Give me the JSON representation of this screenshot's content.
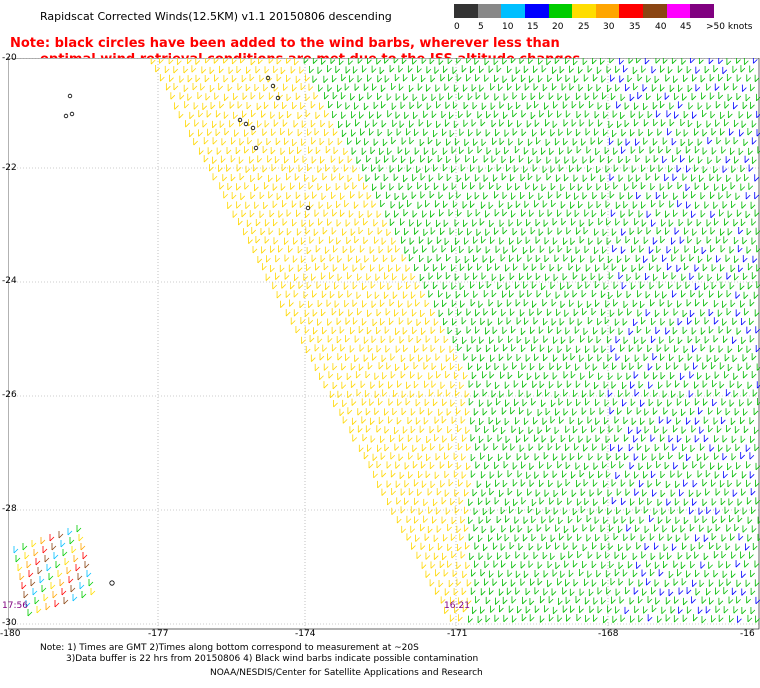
{
  "title": "Rapidscat Corrected Winds(12.5KM) v1.1 20150806 descending",
  "note_red": {
    "line1": "Note: black circles have been added to the wind barbs, wherever less than",
    "line2": "optimal wind retrieval conditions are met due to the ISS altitude changes."
  },
  "legend": {
    "ticks": [
      "0",
      "5",
      "10",
      "15",
      "20",
      "25",
      "30",
      "35",
      "40",
      "45",
      ">50 knots"
    ],
    "colors": [
      "#333333",
      "#888888",
      "#00bfff",
      "#0000ff",
      "#00cc00",
      "#ffdd00",
      "#ffa500",
      "#ff0000",
      "#8b4513",
      "#ff00ff",
      "#800080"
    ]
  },
  "axes": {
    "lat_labels": [
      "-20",
      "-22",
      "-24",
      "-26",
      "-28",
      "-30"
    ],
    "lon_labels": [
      "-180",
      "-177",
      "-174",
      "-171",
      "-168",
      "-16"
    ]
  },
  "time_labels": [
    "17:56",
    "16:21"
  ],
  "footer": {
    "line1": "Note: 1) Times are GMT 2)Times along bottom correspond to measurement at ~20S",
    "line2": "3)Data buffer is 22 hrs from 20150806 4) Black wind barbs indicate possible contamination",
    "credit": "NOAA/NESDIS/Center for Satellite Applications and Research"
  }
}
